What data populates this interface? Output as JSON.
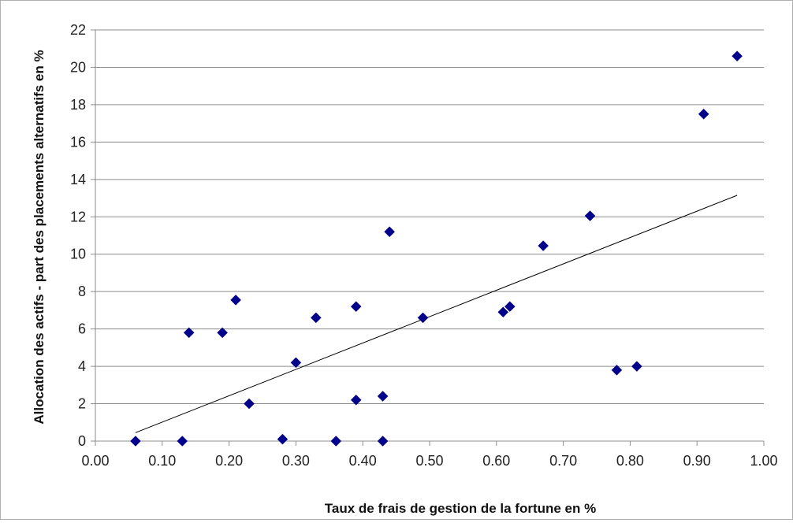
{
  "chart_data": {
    "type": "scatter",
    "title": "",
    "xlabel": "Taux de  frais de gestion de la fortune en %",
    "ylabel": "Allocation des actifs - part des placements alternatifs en %",
    "xlim": [
      0,
      1.0
    ],
    "ylim": [
      0,
      22
    ],
    "x_ticks": [
      "0.00",
      "0.10",
      "0.20",
      "0.30",
      "0.40",
      "0.50",
      "0.60",
      "0.70",
      "0.80",
      "0.90",
      "1.00"
    ],
    "y_ticks": [
      "0",
      "2",
      "4",
      "6",
      "8",
      "10",
      "12",
      "14",
      "16",
      "18",
      "20",
      "22"
    ],
    "grid": "horizontal",
    "marker": "diamond",
    "marker_color": "#00008B",
    "trendline_color": "#000000",
    "series": [
      {
        "points": [
          {
            "x": 0.06,
            "y": 0.0
          },
          {
            "x": 0.13,
            "y": 0.0
          },
          {
            "x": 0.14,
            "y": 5.8
          },
          {
            "x": 0.19,
            "y": 5.8
          },
          {
            "x": 0.21,
            "y": 7.55
          },
          {
            "x": 0.23,
            "y": 2.0
          },
          {
            "x": 0.28,
            "y": 0.1
          },
          {
            "x": 0.3,
            "y": 4.2
          },
          {
            "x": 0.33,
            "y": 6.6
          },
          {
            "x": 0.36,
            "y": 0.0
          },
          {
            "x": 0.39,
            "y": 7.2
          },
          {
            "x": 0.39,
            "y": 2.2
          },
          {
            "x": 0.43,
            "y": 2.4
          },
          {
            "x": 0.43,
            "y": 0.0
          },
          {
            "x": 0.44,
            "y": 11.2
          },
          {
            "x": 0.49,
            "y": 6.6
          },
          {
            "x": 0.61,
            "y": 6.9
          },
          {
            "x": 0.62,
            "y": 7.2
          },
          {
            "x": 0.67,
            "y": 10.45
          },
          {
            "x": 0.74,
            "y": 12.05
          },
          {
            "x": 0.78,
            "y": 3.8
          },
          {
            "x": 0.81,
            "y": 4.0
          },
          {
            "x": 0.91,
            "y": 17.5
          },
          {
            "x": 0.96,
            "y": 20.6
          }
        ]
      }
    ],
    "trendline": [
      {
        "x": 0.06,
        "y": 0.45
      },
      {
        "x": 0.96,
        "y": 13.15
      }
    ]
  }
}
